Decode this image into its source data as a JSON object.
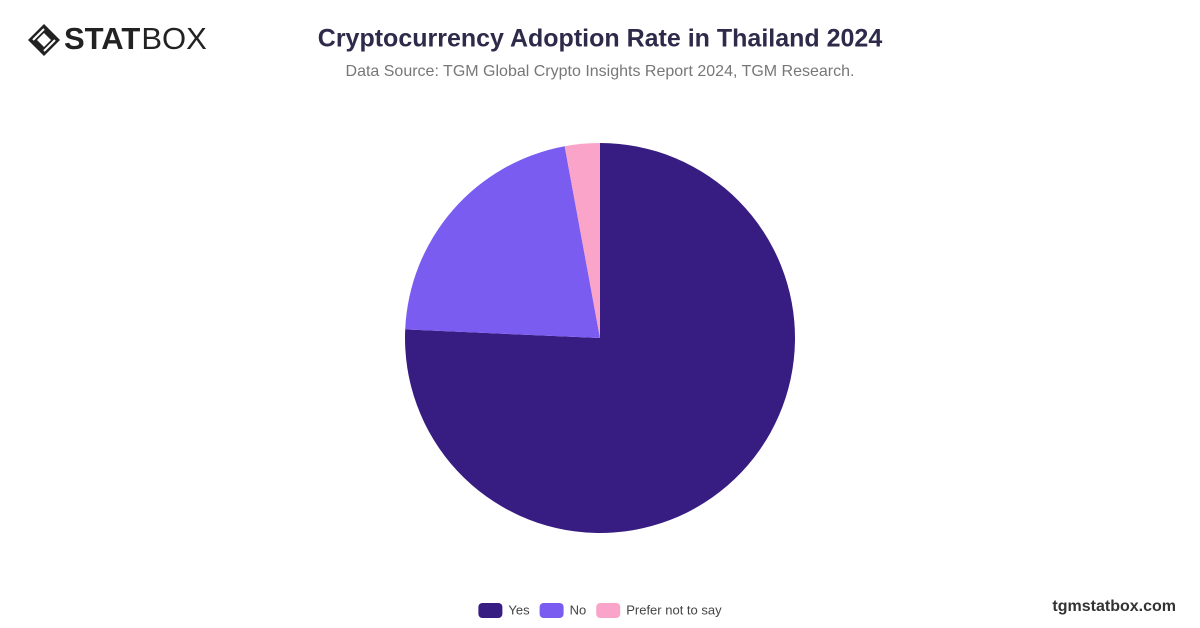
{
  "brand": {
    "logo_bold": "STAT",
    "logo_light": "BOX",
    "website": "tgmstatbox.com"
  },
  "chart_data": {
    "type": "pie",
    "title": "Cryptocurrency Adoption Rate in Thailand 2024",
    "subtitle": "Data Source: TGM Global Crypto Insights Report 2024, TGM Research.",
    "categories": [
      "Yes",
      "No",
      "Prefer not to say"
    ],
    "values": [
      75.7,
      21.4,
      2.9
    ],
    "colors": [
      "#371c82",
      "#7b5cf0",
      "#f9a4c8"
    ],
    "legend": "bottom"
  }
}
